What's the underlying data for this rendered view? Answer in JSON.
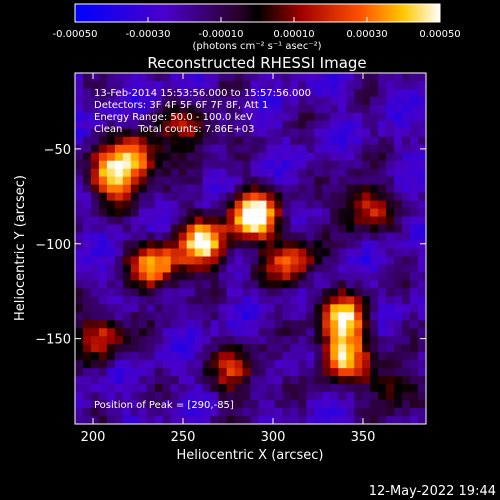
{
  "chart_data": {
    "type": "heatmap",
    "title": "Reconstructed RHESSI Image",
    "xlabel": "Heliocentric X (arcsec)",
    "ylabel": "Heliocentric Y (arcsec)",
    "xlim": [
      190,
      385
    ],
    "ylim": [
      -195,
      -10
    ],
    "xticks": [
      200,
      250,
      300,
      350
    ],
    "yticks": [
      -50,
      -100,
      -150
    ],
    "colorbar": {
      "range": [
        -0.0005,
        0.0005
      ],
      "ticks": [
        -0.0005,
        -0.0003,
        -0.0001,
        0.0001,
        0.0003,
        0.0005
      ],
      "tick_labels": [
        "-0.00050",
        "-0.00030",
        "-0.00010",
        "0.00010",
        "0.00030",
        "0.00050"
      ],
      "unit_label": "(photons cm⁻² s⁻¹ asec⁻²)"
    },
    "annotations": {
      "time_range": "13-Feb-2014 15:53:56.000 to 15:57:56.000",
      "detectors": "Detectors: 3F 4F 5F 6F 7F 8F, Att 1",
      "energy": "Energy Range: 50.0 - 100.0 keV",
      "method": "Clean     Total counts: 7.86E+03",
      "peak": "Position of Peak = [290,-85]"
    },
    "hotspots": [
      {
        "x": 290,
        "y": -85,
        "value": 0.0005
      },
      {
        "x": 262,
        "y": -100,
        "value": 0.00042
      },
      {
        "x": 235,
        "y": -112,
        "value": 0.00036
      },
      {
        "x": 210,
        "y": -65,
        "value": 0.00034
      },
      {
        "x": 225,
        "y": -55,
        "value": 0.0003
      },
      {
        "x": 340,
        "y": -140,
        "value": 0.00038
      },
      {
        "x": 338,
        "y": -160,
        "value": 0.0003
      },
      {
        "x": 350,
        "y": -80,
        "value": 0.0002
      },
      {
        "x": 310,
        "y": -110,
        "value": 0.00022
      },
      {
        "x": 205,
        "y": -148,
        "value": 0.00016
      },
      {
        "x": 280,
        "y": -168,
        "value": 0.00014
      },
      {
        "x": 255,
        "y": -40,
        "value": 0.0001
      },
      {
        "x": 365,
        "y": -175,
        "value": 8e-05
      }
    ]
  },
  "footer": {
    "date": "12-May-2022 19:44"
  }
}
